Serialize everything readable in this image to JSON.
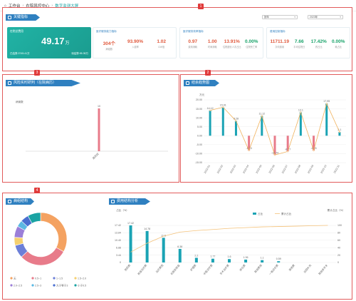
{
  "breadcrumb": {
    "home": "工作台",
    "section": "在院风控中心",
    "current": "数字监测大屏"
  },
  "markers": [
    "1",
    "2",
    "3",
    "4"
  ],
  "kpi": {
    "title": "关键指标",
    "year_select": "2023年",
    "period_select": "按年",
    "main_card": {
      "label": "在院总费用",
      "value": "49.17",
      "unit": "万",
      "sub_left_label": "已结算:",
      "sub_left_value": "3745.41万",
      "sub_right_label": "待结算:",
      "sub_right_value": "95.35万"
    },
    "card1": {
      "title": "医疗服务能力指标",
      "m": [
        {
          "v": "304个",
          "l": "病组数",
          "c": "#e0583b"
        },
        {
          "v": "93.90%",
          "l": "入组率",
          "c": "#e0583b"
        },
        {
          "v": "1.02",
          "l": "CMI值",
          "c": "#e0583b"
        }
      ]
    },
    "card2": {
      "title": "医疗服务效率指标",
      "m": [
        {
          "v": "0.97",
          "l": "费用消耗",
          "c": "#e0583b"
        },
        {
          "v": "1.00",
          "l": "时间消耗",
          "c": "#e0583b"
        },
        {
          "v": "13.91%",
          "l": "住院超长人次占比",
          "c": "#e0583b"
        },
        {
          "v": "0.00%",
          "l": "住院死亡率",
          "c": "#1aa36a"
        }
      ]
    },
    "card3": {
      "title": "费用控制指标",
      "m": [
        {
          "v": "11711.19",
          "l": "次均费用",
          "c": "#e0583b"
        },
        {
          "v": "7.66",
          "l": "平均住院日",
          "c": "#1aa36a"
        },
        {
          "v": "17.42%",
          "l": "药占比",
          "c": "#1aa36a"
        },
        {
          "v": "0.00%",
          "l": "耗占比",
          "c": "#1aa36a"
        }
      ]
    }
  },
  "risk": {
    "title": "风险实时研判（在院病历）",
    "chart_data": {
      "type": "bar",
      "categories": [
        "高风险"
      ],
      "values": [
        10
      ],
      "ylabel": "病案数",
      "color": "#e87b8a"
    }
  },
  "trend": {
    "title": "结余趋势图",
    "chart_data": {
      "type": "bar",
      "ylabel": "万元",
      "categories": [
        "2022-01",
        "2022-02",
        "2022-03",
        "2022-04",
        "2022-05",
        "2022-06",
        "2022-07",
        "2022-08",
        "2022-09",
        "2022-10",
        "2022-11"
      ],
      "values": [
        14.12,
        15.91,
        8.28,
        -8.23,
        11.12,
        -10.74,
        -8.77,
        13.1,
        -8.25,
        17.95,
        2.1
      ],
      "value_labels": [
        "14.12",
        "15.91",
        "8.28",
        "-8.23",
        "11.12",
        "-10.74",
        "-8.77",
        "13.1",
        "-8.25",
        "17.95",
        "2.1"
      ],
      "ylim": [
        -15,
        20
      ],
      "yticks": [
        "20.00",
        "15.00",
        "10.00",
        "5.00",
        "0.00",
        "-5.00",
        "-10.00",
        "-15.00"
      ],
      "pos_color": "#1aa3b4",
      "neg_color": "#e87b8a",
      "line_color": "#f0b15a"
    }
  },
  "disease": {
    "title": "病组结构",
    "chart_data": {
      "type": "pie",
      "labels": [
        "无",
        "0.5~1",
        "1~1.5",
        "1.5~2.0",
        "2.0~2.5",
        "2.5~3",
        "大于等于3",
        "小于0.5"
      ],
      "values": [
        33,
        30,
        8,
        5,
        7,
        4,
        5,
        8
      ],
      "colors": [
        "#f4a261",
        "#e87b8a",
        "#6c7fd8",
        "#f5d06f",
        "#9b7fd8",
        "#5bb8e3",
        "#4a6fd0",
        "#1aa3a3"
      ]
    }
  },
  "cost": {
    "title": "费用结构分析",
    "chart_data": {
      "type": "bar",
      "y1label": "占比（%）",
      "y2label": "累计占比（%）",
      "legend": [
        "占比",
        "累计占比"
      ],
      "categories": [
        "西药费",
        "检查治疗费",
        "治疗费用",
        "化验及检查",
        "护理费",
        "中医诊疗费",
        "手术治疗费",
        "床位费",
        "其他费用",
        "一般诊疗费",
        "其他费",
        "出院补充",
        "其他非手术"
      ],
      "values": [
        17.42,
        14.78,
        11.6,
        6.38,
        2.2,
        1.77,
        1.6,
        1.36,
        1.1,
        0.59,
        0,
        0,
        0
      ],
      "value_labels": [
        "17.42",
        "14.78",
        "11.6",
        "6.38",
        "2.2",
        "1.77",
        "1.6",
        "1.36",
        "1.1",
        "0.59",
        "",
        "",
        ""
      ],
      "cumulative": [
        28,
        52,
        71,
        82,
        86,
        89,
        92,
        94,
        96,
        97,
        98,
        99,
        100
      ],
      "y1ticks": [
        "17.42",
        "13.84",
        "10.40",
        "6.88",
        "3.44",
        "0"
      ],
      "y2ticks": [
        "100",
        "80",
        "60",
        "40",
        "20",
        "0"
      ],
      "bar_color": "#1aa3b4",
      "line_color": "#f4c27a"
    }
  }
}
